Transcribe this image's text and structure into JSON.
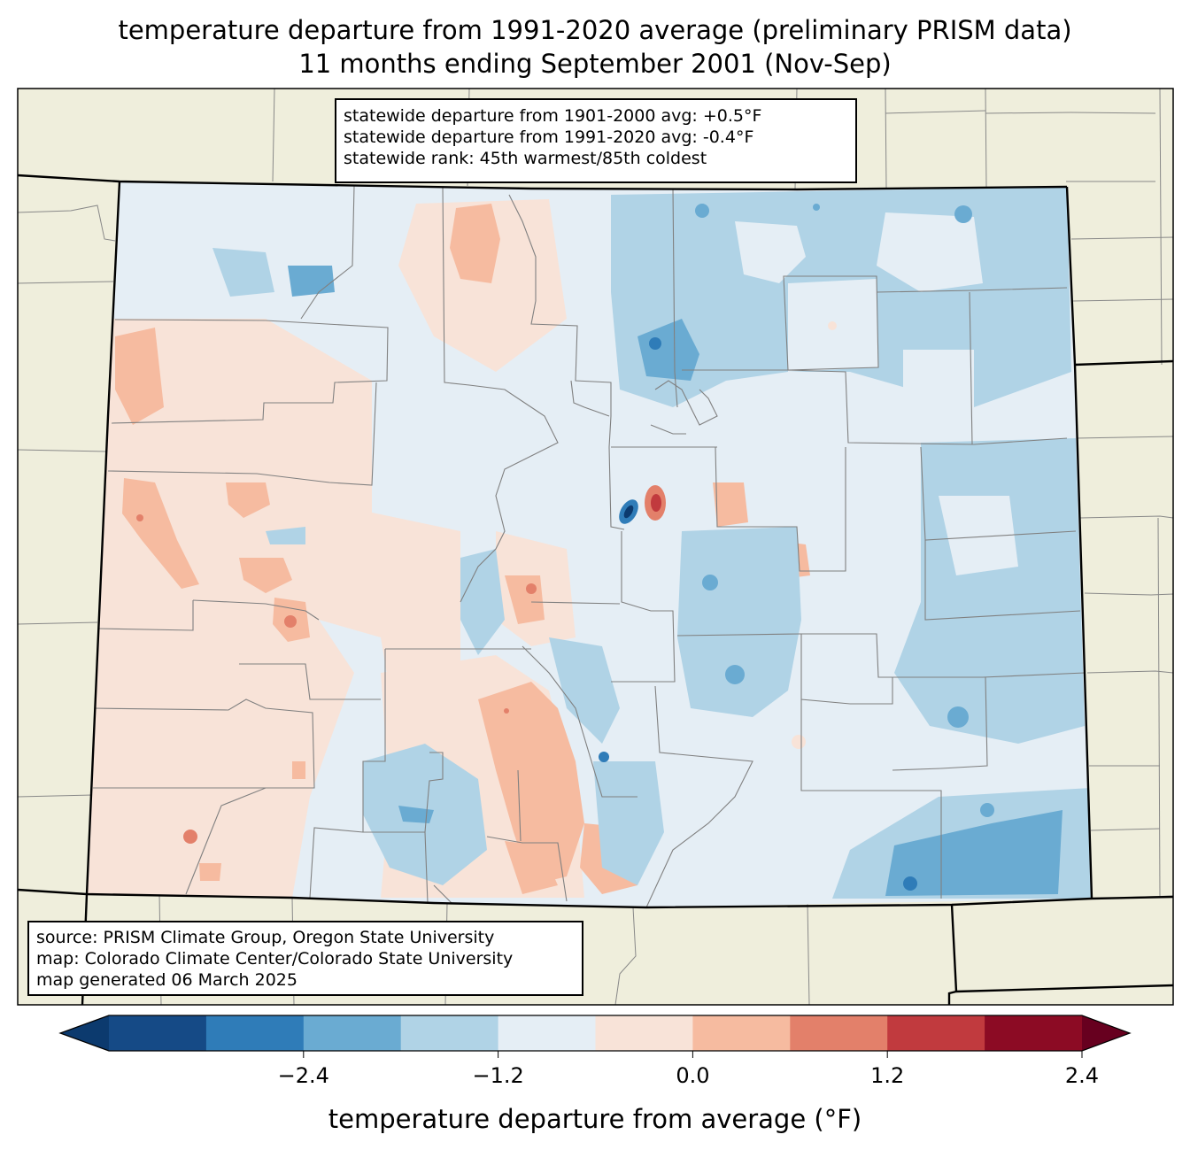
{
  "title_line1": "temperature departure from 1991-2020 average (preliminary PRISM data)",
  "title_line2": "11 months ending September 2001 (Nov-Sep)",
  "stats": {
    "line1": "statewide departure from 1901-2000 avg: +0.5°F",
    "line2": "statewide departure from 1991-2020 avg: -0.4°F",
    "line3": "statewide rank: 45th warmest/85th coldest"
  },
  "source": {
    "line1": "source: PRISM Climate Group, Oregon State University",
    "line2": "map: Colorado Climate Center/Colorado State University",
    "line3": "map generated 06 March 2025"
  },
  "colorbar": {
    "label": "temperature departure from average (°F)",
    "ticks": [
      "−2.4",
      "−1.2",
      "0.0",
      "1.2",
      "2.4"
    ],
    "colors": [
      "#0c3a6e",
      "#154a86",
      "#2f7cb8",
      "#6aabd2",
      "#b0d3e6",
      "#e5eef5",
      "#f8e3d8",
      "#f6bba0",
      "#e3806a",
      "#c13a3e",
      "#8c0b24",
      "#67001f"
    ]
  },
  "colors": {
    "land_background": "#efeedc",
    "state_fill_neutral": "#e5eef5"
  }
}
